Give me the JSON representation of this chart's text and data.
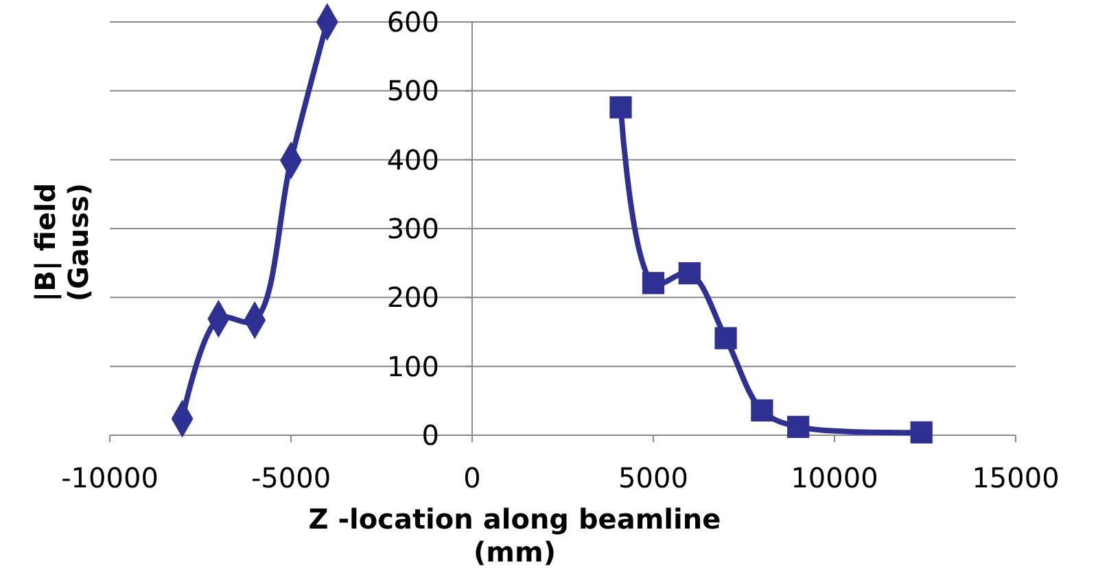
{
  "chart_data": {
    "type": "line",
    "xlabel": "Z -location along beamline\n(mm)",
    "ylabel": "|B| field\n(Gauss)",
    "xlim": [
      -10000,
      15000
    ],
    "xticks": [
      -10000,
      -5000,
      0,
      5000,
      10000,
      15000
    ],
    "ylim": [
      0,
      600
    ],
    "yticks": [
      0,
      100,
      200,
      300,
      400,
      500,
      600
    ],
    "grid": "y",
    "line_style": "solid",
    "series": [
      {
        "color": "#2e3192",
        "marker": "diamond",
        "x": [
          -8000,
          -7000,
          -6000,
          -5000,
          -4000
        ],
        "values": [
          24,
          169,
          167,
          399,
          600
        ]
      },
      {
        "color": "#2e3192",
        "marker": "square",
        "x": [
          4100,
          5000,
          6000,
          7000,
          8000,
          9000,
          12400
        ],
        "values": [
          476,
          221,
          235,
          141,
          36,
          12,
          4
        ]
      }
    ]
  }
}
